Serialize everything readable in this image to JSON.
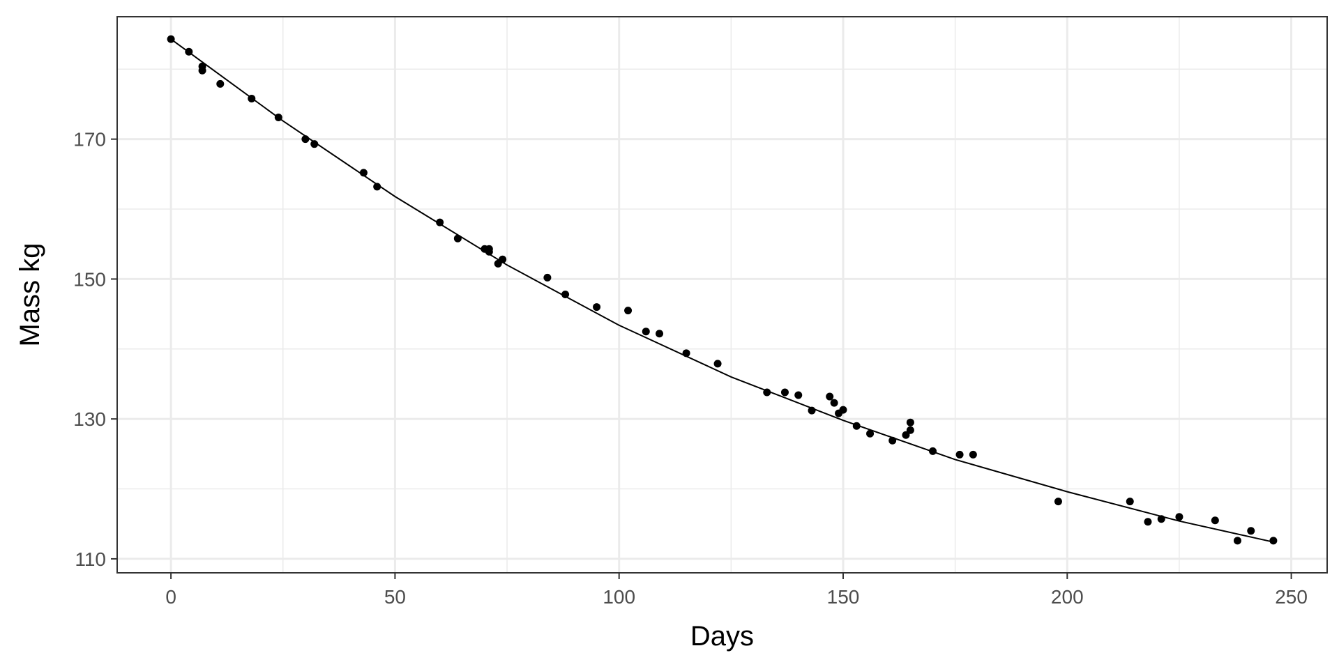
{
  "chart_data": {
    "type": "scatter",
    "title": "",
    "xlabel": "Days",
    "ylabel": "Mass kg",
    "xlim": [
      -12,
      258
    ],
    "ylim": [
      108,
      187.5
    ],
    "x_ticks": [
      0,
      50,
      100,
      150,
      200,
      250
    ],
    "y_ticks": [
      110,
      130,
      150,
      170
    ],
    "x_tick_labels": [
      "0",
      "50",
      "100",
      "150",
      "200",
      "250"
    ],
    "y_tick_labels": [
      "110",
      "130",
      "150",
      "170"
    ],
    "grid": true,
    "legend": "none",
    "colors": {
      "points": "#000000",
      "line": "#000000",
      "grid": "#ebebeb",
      "panel_border": "#333333",
      "background": "#ffffff"
    },
    "series": [
      {
        "kind": "points",
        "x": [
          0,
          4,
          7,
          7,
          11,
          18,
          24,
          30,
          32,
          43,
          46,
          60,
          64,
          70,
          71,
          71,
          73,
          74,
          84,
          88,
          95,
          102,
          106,
          109,
          115,
          122,
          133,
          137,
          140,
          143,
          147,
          148,
          149,
          150,
          153,
          156,
          161,
          164,
          165,
          165,
          170,
          176,
          179,
          198,
          214,
          218,
          221,
          225,
          233,
          238,
          241,
          246
        ],
        "y": [
          184.3,
          182.5,
          180.4,
          179.8,
          177.9,
          175.8,
          173.1,
          170.0,
          169.3,
          165.2,
          163.2,
          158.1,
          155.8,
          154.3,
          154.3,
          153.9,
          152.2,
          152.8,
          150.2,
          147.8,
          146.0,
          145.5,
          142.5,
          142.2,
          139.4,
          137.9,
          133.8,
          133.8,
          133.4,
          131.2,
          133.2,
          132.3,
          130.8,
          131.3,
          129.0,
          127.9,
          126.9,
          127.7,
          128.4,
          129.5,
          125.4,
          124.9,
          124.9,
          118.2,
          118.2,
          115.3,
          115.7,
          116.0,
          115.5,
          112.6,
          114.0,
          112.6
        ]
      },
      {
        "kind": "line",
        "x": [
          0,
          25,
          50,
          75,
          100,
          125,
          150,
          175,
          200,
          225,
          246
        ],
        "y": [
          184.3,
          172.6,
          161.8,
          152.0,
          143.4,
          136.0,
          129.8,
          124.2,
          119.6,
          115.4,
          112.4
        ]
      }
    ]
  }
}
